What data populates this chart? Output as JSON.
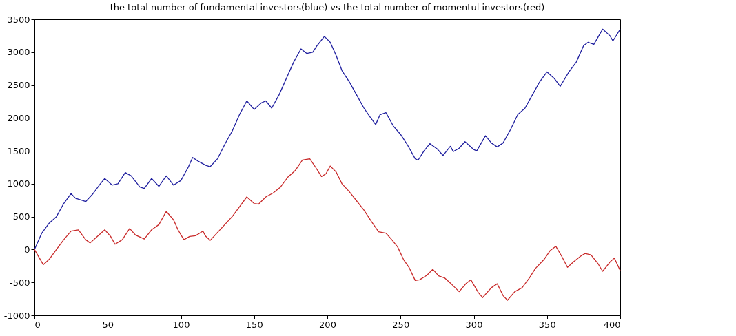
{
  "chart_data": {
    "type": "line",
    "title": "the total number of fundamental investors(blue) vs the total number of momentul investors(red)",
    "xlim": [
      0,
      400
    ],
    "xticks": [
      0,
      50,
      100,
      150,
      200,
      250,
      300,
      350,
      400
    ],
    "ylim": [
      -1000,
      3500
    ],
    "yticks": [
      -1000,
      -500,
      0,
      500,
      1000,
      1500,
      2000,
      2500,
      3000,
      3500
    ],
    "grid": false,
    "legend": false,
    "marker": "none",
    "line_style": "solid",
    "series": [
      {
        "color": "#1f1f9f",
        "x": [
          0,
          5,
          10,
          15,
          20,
          25,
          28,
          35,
          40,
          45,
          48,
          53,
          57,
          62,
          66,
          72,
          75,
          80,
          85,
          90,
          95,
          100,
          105,
          108,
          112,
          117,
          120,
          125,
          130,
          135,
          140,
          145,
          150,
          155,
          158,
          162,
          167,
          172,
          177,
          182,
          186,
          190,
          193,
          198,
          202,
          206,
          210,
          215,
          220,
          225,
          229,
          233,
          236,
          240,
          245,
          250,
          255,
          260,
          262,
          266,
          270,
          275,
          279,
          284,
          286,
          290,
          294,
          300,
          302,
          308,
          312,
          316,
          320,
          325,
          330,
          335,
          340,
          345,
          350,
          355,
          359,
          365,
          370,
          375,
          378,
          382,
          388,
          393,
          395,
          400
        ],
        "values": [
          0,
          250,
          400,
          500,
          700,
          850,
          780,
          730,
          850,
          1000,
          1080,
          980,
          1000,
          1170,
          1120,
          950,
          930,
          1080,
          960,
          1120,
          980,
          1050,
          1250,
          1400,
          1340,
          1280,
          1260,
          1380,
          1600,
          1800,
          2050,
          2260,
          2130,
          2230,
          2260,
          2150,
          2350,
          2600,
          2850,
          3050,
          2980,
          3000,
          3100,
          3240,
          3150,
          2950,
          2720,
          2550,
          2350,
          2150,
          2020,
          1900,
          2050,
          2080,
          1880,
          1750,
          1580,
          1380,
          1360,
          1500,
          1610,
          1530,
          1430,
          1570,
          1490,
          1540,
          1640,
          1520,
          1500,
          1730,
          1620,
          1560,
          1620,
          1820,
          2050,
          2150,
          2350,
          2550,
          2700,
          2600,
          2480,
          2700,
          2850,
          3100,
          3150,
          3120,
          3350,
          3250,
          3170,
          3350
        ]
      },
      {
        "color": "#c82828",
        "x": [
          0,
          6,
          10,
          15,
          20,
          25,
          30,
          35,
          38,
          43,
          48,
          52,
          55,
          60,
          65,
          69,
          75,
          80,
          85,
          90,
          95,
          98,
          102,
          106,
          110,
          115,
          117,
          120,
          125,
          130,
          135,
          140,
          145,
          150,
          153,
          158,
          163,
          168,
          173,
          178,
          183,
          188,
          192,
          196,
          199,
          202,
          206,
          210,
          215,
          220,
          225,
          230,
          235,
          240,
          244,
          248,
          252,
          256,
          260,
          263,
          268,
          272,
          276,
          280,
          285,
          290,
          295,
          298,
          303,
          306,
          312,
          316,
          320,
          323,
          328,
          333,
          338,
          342,
          348,
          352,
          356,
          360,
          364,
          368,
          373,
          376,
          380,
          385,
          388,
          393,
          396,
          400
        ],
        "values": [
          0,
          -230,
          -150,
          0,
          150,
          280,
          300,
          150,
          100,
          200,
          300,
          200,
          80,
          150,
          320,
          220,
          160,
          300,
          380,
          580,
          450,
          300,
          150,
          200,
          210,
          280,
          200,
          140,
          260,
          380,
          500,
          650,
          800,
          700,
          690,
          800,
          860,
          950,
          1100,
          1200,
          1360,
          1380,
          1250,
          1110,
          1150,
          1270,
          1180,
          1000,
          880,
          740,
          600,
          430,
          270,
          250,
          150,
          40,
          -150,
          -280,
          -470,
          -460,
          -390,
          -300,
          -400,
          -430,
          -530,
          -640,
          -510,
          -460,
          -650,
          -730,
          -580,
          -520,
          -700,
          -770,
          -640,
          -580,
          -430,
          -290,
          -150,
          -20,
          50,
          -100,
          -270,
          -190,
          -100,
          -60,
          -80,
          -220,
          -330,
          -190,
          -130,
          -320
        ]
      }
    ]
  }
}
